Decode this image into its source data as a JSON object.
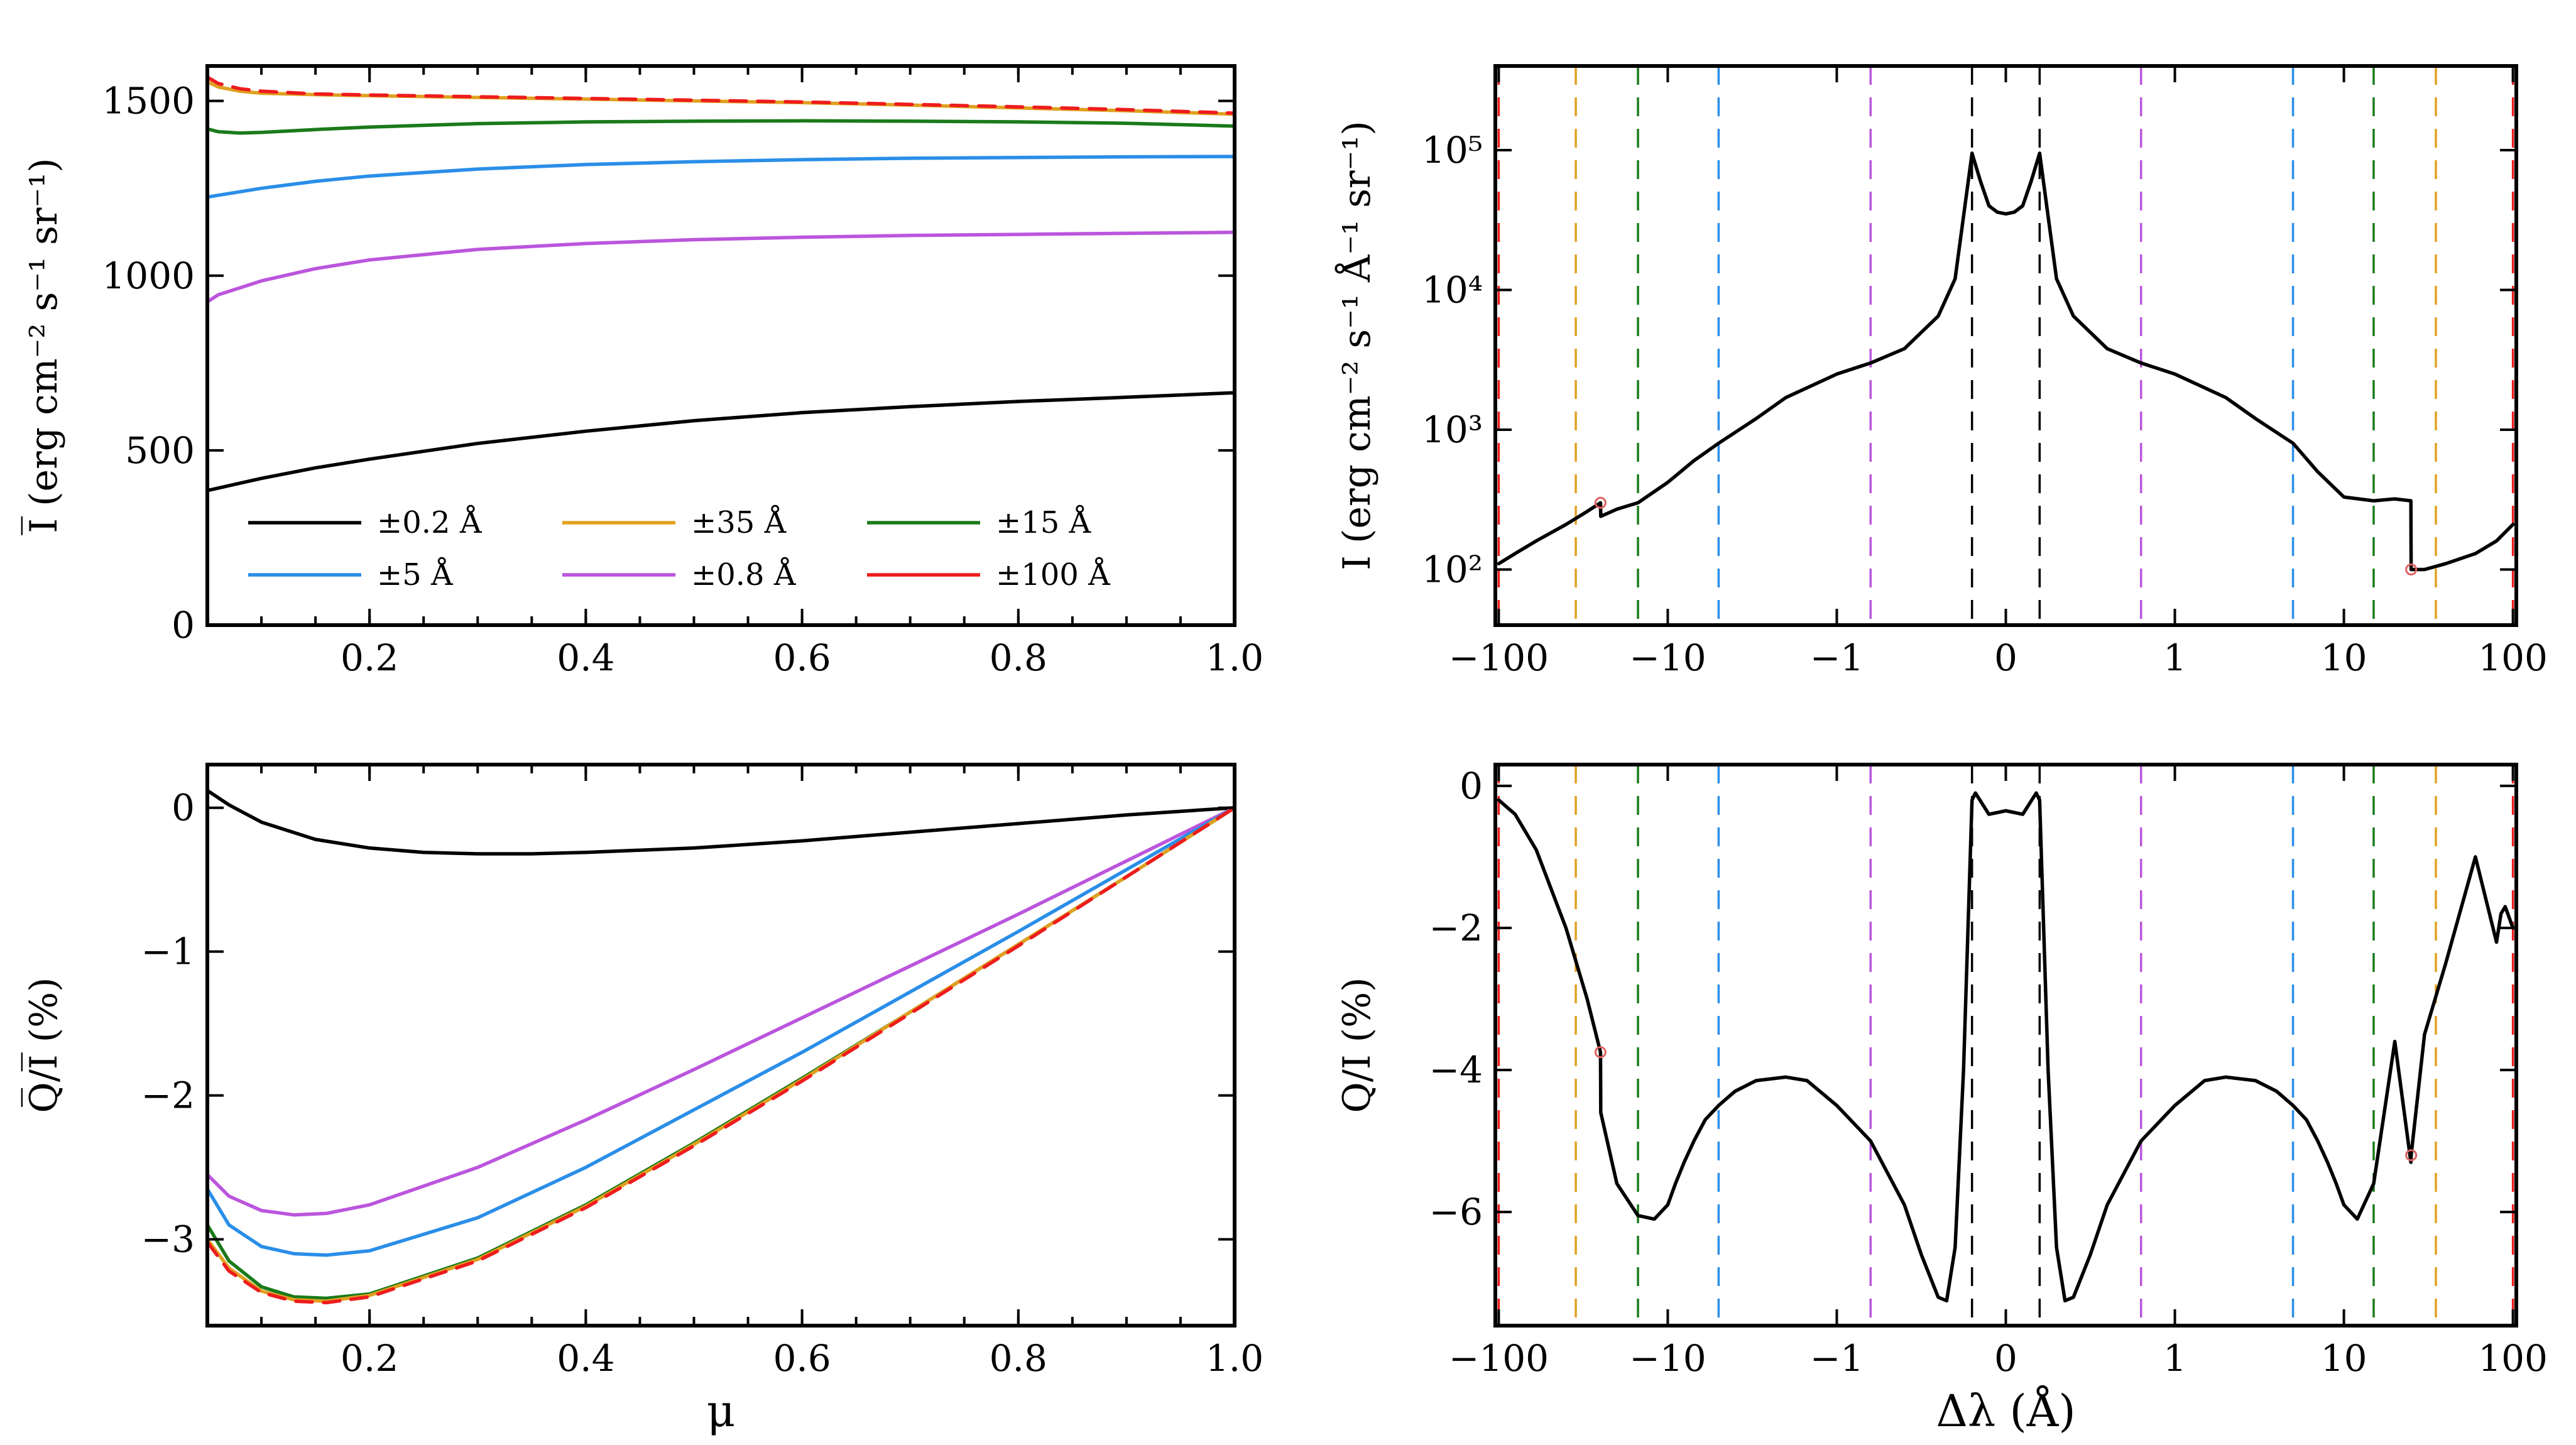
{
  "colors": {
    "c0_2": "#000000",
    "c0_8": "#bb55dd",
    "c5": "#2a8ee8",
    "c15": "#1a7a1a",
    "c35": "#e0a020",
    "c100": "#ee1c1c"
  },
  "chart_data": [
    {
      "id": "top-left",
      "type": "line",
      "title": "",
      "xlabel": "",
      "ylabel": "I̅ (erg cm⁻² s⁻¹ sr⁻¹)",
      "xlim": [
        0.05,
        1.0
      ],
      "ylim": [
        0,
        1600
      ],
      "xticks": [
        0.2,
        0.4,
        0.6,
        0.8,
        1.0
      ],
      "xtick_labels": [
        "0.2",
        "0.4",
        "0.6",
        "0.8",
        "1.0"
      ],
      "yticks": [
        0,
        500,
        1000,
        1500
      ],
      "ytick_labels": [
        "0",
        "500",
        "1000",
        "1500"
      ],
      "legend": {
        "position": "lower-left",
        "entries": [
          {
            "label": "±0.2 Å",
            "color_key": "c0_2"
          },
          {
            "label": "±5 Å",
            "color_key": "c5"
          },
          {
            "label": "±35 Å",
            "color_key": "c35"
          },
          {
            "label": "±0.8 Å",
            "color_key": "c0_8"
          },
          {
            "label": "±15 Å",
            "color_key": "c15"
          },
          {
            "label": "±100 Å",
            "color_key": "c100"
          }
        ]
      },
      "series": [
        {
          "name": "±0.2 Å",
          "color_key": "c0_2",
          "x": [
            0.05,
            0.1,
            0.15,
            0.2,
            0.3,
            0.4,
            0.5,
            0.6,
            0.7,
            0.8,
            0.9,
            1.0
          ],
          "y": [
            385,
            420,
            450,
            475,
            520,
            555,
            585,
            608,
            625,
            640,
            652,
            665
          ]
        },
        {
          "name": "±0.8 Å",
          "color_key": "c0_8",
          "x": [
            0.05,
            0.06,
            0.08,
            0.1,
            0.15,
            0.2,
            0.3,
            0.4,
            0.5,
            0.6,
            0.7,
            0.8,
            0.9,
            1.0
          ],
          "y": [
            925,
            945,
            965,
            985,
            1020,
            1045,
            1075,
            1092,
            1103,
            1110,
            1115,
            1118,
            1121,
            1124
          ]
        },
        {
          "name": "±5 Å",
          "color_key": "c5",
          "x": [
            0.05,
            0.06,
            0.08,
            0.1,
            0.15,
            0.2,
            0.3,
            0.4,
            0.5,
            0.6,
            0.7,
            0.8,
            0.9,
            1.0
          ],
          "y": [
            1225,
            1230,
            1240,
            1250,
            1270,
            1285,
            1305,
            1318,
            1326,
            1332,
            1336,
            1338,
            1340,
            1341
          ]
        },
        {
          "name": "±15 Å",
          "color_key": "c15",
          "x": [
            0.05,
            0.06,
            0.08,
            0.1,
            0.15,
            0.2,
            0.3,
            0.4,
            0.5,
            0.6,
            0.7,
            0.8,
            0.9,
            1.0
          ],
          "y": [
            1420,
            1412,
            1408,
            1410,
            1418,
            1425,
            1435,
            1440,
            1442,
            1443,
            1442,
            1440,
            1436,
            1428
          ]
        },
        {
          "name": "±35 Å",
          "color_key": "c35",
          "x": [
            0.05,
            0.06,
            0.08,
            0.1,
            0.15,
            0.2,
            0.3,
            0.4,
            0.5,
            0.6,
            0.7,
            0.8,
            0.9,
            1.0
          ],
          "y": [
            1555,
            1540,
            1528,
            1522,
            1518,
            1515,
            1510,
            1505,
            1500,
            1495,
            1488,
            1480,
            1472,
            1462
          ]
        },
        {
          "name": "±100 Å",
          "color_key": "c100",
          "dashed": true,
          "x": [
            0.05,
            0.06,
            0.08,
            0.1,
            0.15,
            0.2,
            0.3,
            0.4,
            0.5,
            0.6,
            0.7,
            0.8,
            0.9,
            1.0
          ],
          "y": [
            1568,
            1550,
            1535,
            1528,
            1520,
            1517,
            1512,
            1507,
            1502,
            1497,
            1490,
            1483,
            1475,
            1465
          ]
        }
      ]
    },
    {
      "id": "bottom-left",
      "type": "line",
      "title": "",
      "xlabel": "μ",
      "ylabel": "Q̅/I̅ (%)",
      "xlim": [
        0.05,
        1.0
      ],
      "ylim": [
        -3.6,
        0.3
      ],
      "xticks": [
        0.2,
        0.4,
        0.6,
        0.8,
        1.0
      ],
      "xtick_labels": [
        "0.2",
        "0.4",
        "0.6",
        "0.8",
        "1.0"
      ],
      "yticks": [
        0,
        -1,
        -2,
        -3
      ],
      "ytick_labels": [
        "0",
        "−1",
        "−2",
        "−3"
      ],
      "series": [
        {
          "name": "±0.2 Å",
          "color_key": "c0_2",
          "x": [
            0.05,
            0.07,
            0.1,
            0.15,
            0.2,
            0.25,
            0.3,
            0.35,
            0.4,
            0.5,
            0.6,
            0.7,
            0.8,
            0.9,
            1.0
          ],
          "y": [
            0.12,
            0.02,
            -0.1,
            -0.22,
            -0.28,
            -0.31,
            -0.32,
            -0.32,
            -0.31,
            -0.28,
            -0.23,
            -0.17,
            -0.11,
            -0.05,
            0.0
          ]
        },
        {
          "name": "±0.8 Å",
          "color_key": "c0_8",
          "x": [
            0.05,
            0.07,
            0.1,
            0.13,
            0.16,
            0.2,
            0.3,
            0.4,
            0.5,
            0.6,
            0.7,
            0.8,
            0.9,
            1.0
          ],
          "y": [
            -2.55,
            -2.7,
            -2.8,
            -2.83,
            -2.82,
            -2.76,
            -2.5,
            -2.17,
            -1.82,
            -1.46,
            -1.1,
            -0.74,
            -0.37,
            0.0
          ]
        },
        {
          "name": "±5 Å",
          "color_key": "c5",
          "x": [
            0.05,
            0.07,
            0.1,
            0.13,
            0.16,
            0.2,
            0.3,
            0.4,
            0.5,
            0.6,
            0.7,
            0.8,
            0.9,
            1.0
          ],
          "y": [
            -2.65,
            -2.9,
            -3.05,
            -3.1,
            -3.11,
            -3.08,
            -2.85,
            -2.5,
            -2.1,
            -1.7,
            -1.28,
            -0.86,
            -0.43,
            0.0
          ]
        },
        {
          "name": "±15 Å",
          "color_key": "c15",
          "x": [
            0.05,
            0.07,
            0.1,
            0.13,
            0.16,
            0.2,
            0.3,
            0.4,
            0.5,
            0.6,
            0.7,
            0.8,
            0.9,
            1.0
          ],
          "y": [
            -2.9,
            -3.15,
            -3.33,
            -3.4,
            -3.41,
            -3.38,
            -3.13,
            -2.76,
            -2.33,
            -1.88,
            -1.42,
            -0.95,
            -0.48,
            0.0
          ]
        },
        {
          "name": "±35 Å",
          "color_key": "c35",
          "x": [
            0.05,
            0.07,
            0.1,
            0.13,
            0.16,
            0.2,
            0.3,
            0.4,
            0.5,
            0.6,
            0.7,
            0.8,
            0.9,
            1.0
          ],
          "y": [
            -3.0,
            -3.2,
            -3.36,
            -3.42,
            -3.43,
            -3.39,
            -3.14,
            -2.77,
            -2.34,
            -1.89,
            -1.42,
            -0.95,
            -0.48,
            0.0
          ]
        },
        {
          "name": "±100 Å",
          "color_key": "c100",
          "dashed": true,
          "x": [
            0.05,
            0.07,
            0.1,
            0.13,
            0.16,
            0.2,
            0.3,
            0.4,
            0.5,
            0.6,
            0.7,
            0.8,
            0.9,
            1.0
          ],
          "y": [
            -3.02,
            -3.22,
            -3.37,
            -3.43,
            -3.44,
            -3.4,
            -3.15,
            -2.78,
            -2.35,
            -1.9,
            -1.43,
            -0.96,
            -0.48,
            0.0
          ]
        }
      ]
    },
    {
      "id": "top-right",
      "type": "line",
      "title": "",
      "xlabel": "",
      "ylabel": "I (erg cm⁻² s⁻¹ Å⁻¹ sr⁻¹)",
      "xscale": "symlog",
      "yscale": "log",
      "xlim": [
        -100,
        100
      ],
      "ylim": [
        40,
        400000
      ],
      "xticks": [
        -100,
        -10,
        -1,
        0,
        1,
        10,
        100
      ],
      "xtick_labels": [
        "−100",
        "−10",
        "−1",
        "0",
        "1",
        "10",
        "100"
      ],
      "yticks": [
        100,
        1000,
        10000,
        100000
      ],
      "ytick_labels": [
        "10²",
        "10³",
        "10⁴",
        "10⁵"
      ],
      "series": [
        {
          "name": "I",
          "color_key": "c0_2",
          "x": [
            -100,
            -80,
            -60,
            -40,
            -30,
            -25,
            -24.9,
            -20,
            -15,
            -10,
            -7,
            -5,
            -3,
            -2,
            -1,
            -0.8,
            -0.6,
            -0.4,
            -0.3,
            -0.2,
            -0.15,
            -0.1,
            -0.05,
            0,
            0.05,
            0.1,
            0.15,
            0.2,
            0.3,
            0.4,
            0.6,
            0.8,
            1,
            2,
            3,
            5,
            7,
            10,
            15,
            20,
            24.9,
            25,
            30,
            40,
            60,
            80,
            100
          ],
          "y": [
            110,
            130,
            160,
            210,
            260,
            300,
            240,
            270,
            300,
            420,
            600,
            800,
            1200,
            1700,
            2500,
            3000,
            3800,
            6500,
            12000,
            95000,
            60000,
            40000,
            36000,
            35000,
            36000,
            40000,
            60000,
            95000,
            12000,
            6500,
            3800,
            3000,
            2500,
            1700,
            1200,
            800,
            500,
            330,
            310,
            320,
            310,
            100,
            100,
            110,
            130,
            160,
            210
          ]
        }
      ],
      "vlines": [
        {
          "x": -100,
          "color_key": "c100"
        },
        {
          "x": -35,
          "color_key": "c35"
        },
        {
          "x": -15,
          "color_key": "c15"
        },
        {
          "x": -5,
          "color_key": "c5"
        },
        {
          "x": -0.8,
          "color_key": "c0_8"
        },
        {
          "x": -0.2,
          "color_key": "c0_2"
        },
        {
          "x": 0.2,
          "color_key": "c0_2"
        },
        {
          "x": 0.8,
          "color_key": "c0_8"
        },
        {
          "x": 5,
          "color_key": "c5"
        },
        {
          "x": 15,
          "color_key": "c15"
        },
        {
          "x": 35,
          "color_key": "c35"
        },
        {
          "x": 100,
          "color_key": "c100"
        }
      ],
      "markers": [
        {
          "x": -25,
          "y": 300
        },
        {
          "x": 25,
          "y": 100
        }
      ]
    },
    {
      "id": "bottom-right",
      "type": "line",
      "title": "",
      "xlabel": "Δλ (Å)",
      "ylabel": "Q/I (%)",
      "xscale": "symlog",
      "xlim": [
        -100,
        100
      ],
      "ylim": [
        -7.6,
        0.3
      ],
      "xticks": [
        -100,
        -10,
        -1,
        0,
        1,
        10,
        100
      ],
      "xtick_labels": [
        "−100",
        "−10",
        "−1",
        "0",
        "1",
        "10",
        "100"
      ],
      "yticks": [
        0,
        -2,
        -4,
        -6
      ],
      "ytick_labels": [
        "0",
        "−2",
        "−4",
        "−6"
      ],
      "series": [
        {
          "name": "Q/I",
          "color_key": "c0_2",
          "x": [
            -100,
            -80,
            -60,
            -40,
            -30,
            -25,
            -24.9,
            -20,
            -15,
            -12,
            -10,
            -9,
            -8,
            -7,
            -6,
            -5,
            -4,
            -3,
            -2,
            -1.5,
            -1,
            -0.8,
            -0.6,
            -0.5,
            -0.4,
            -0.35,
            -0.3,
            -0.25,
            -0.2,
            -0.18,
            -0.1,
            0,
            0.1,
            0.18,
            0.2,
            0.25,
            0.3,
            0.35,
            0.4,
            0.5,
            0.6,
            0.8,
            1,
            1.5,
            2,
            3,
            4,
            5,
            6,
            7,
            8,
            9,
            10,
            12,
            15,
            20,
            24.9,
            25,
            30,
            40,
            60,
            80,
            85,
            90,
            100
          ],
          "y": [
            -0.2,
            -0.4,
            -0.9,
            -2.0,
            -3.0,
            -3.75,
            -4.6,
            -5.6,
            -6.05,
            -6.1,
            -5.9,
            -5.6,
            -5.3,
            -5.0,
            -4.7,
            -4.5,
            -4.3,
            -4.15,
            -4.1,
            -4.15,
            -4.5,
            -5.0,
            -5.9,
            -6.6,
            -7.2,
            -7.25,
            -6.5,
            -4.0,
            -0.2,
            -0.1,
            -0.4,
            -0.35,
            -0.4,
            -0.1,
            -0.2,
            -4.0,
            -6.5,
            -7.25,
            -7.2,
            -6.6,
            -5.9,
            -5.0,
            -4.5,
            -4.15,
            -4.1,
            -4.15,
            -4.3,
            -4.5,
            -4.7,
            -5.0,
            -5.3,
            -5.6,
            -5.9,
            -6.1,
            -5.6,
            -3.6,
            -5.3,
            -5.2,
            -3.5,
            -2.5,
            -1.0,
            -2.2,
            -1.8,
            -1.7,
            -2.0
          ]
        }
      ],
      "vlines": [
        {
          "x": -100,
          "color_key": "c100"
        },
        {
          "x": -35,
          "color_key": "c35"
        },
        {
          "x": -15,
          "color_key": "c15"
        },
        {
          "x": -5,
          "color_key": "c5"
        },
        {
          "x": -0.8,
          "color_key": "c0_8"
        },
        {
          "x": -0.2,
          "color_key": "c0_2"
        },
        {
          "x": 0.2,
          "color_key": "c0_2"
        },
        {
          "x": 0.8,
          "color_key": "c0_8"
        },
        {
          "x": 5,
          "color_key": "c5"
        },
        {
          "x": 15,
          "color_key": "c15"
        },
        {
          "x": 35,
          "color_key": "c35"
        },
        {
          "x": 100,
          "color_key": "c100"
        }
      ],
      "markers": [
        {
          "x": -25,
          "y": -3.75
        },
        {
          "x": 25,
          "y": -5.2
        }
      ]
    }
  ]
}
